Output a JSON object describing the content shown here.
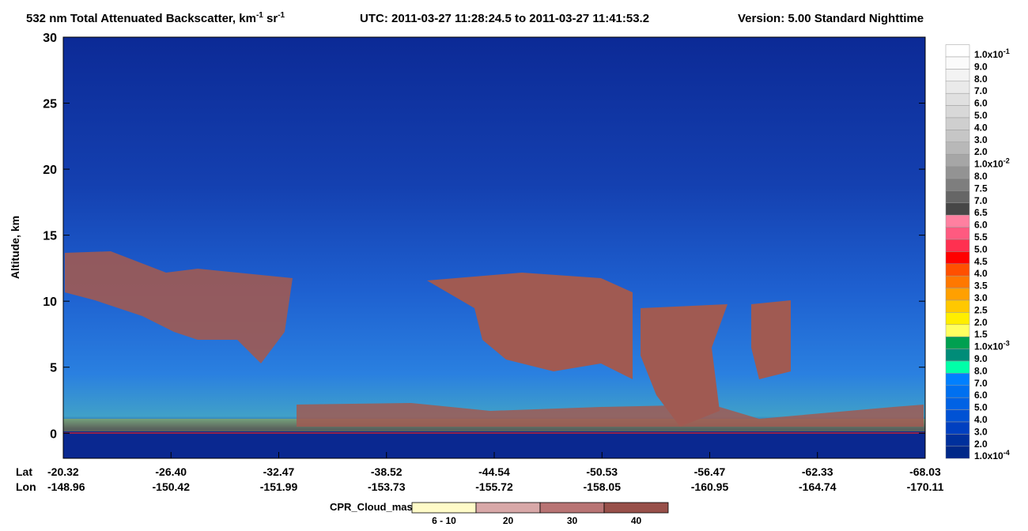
{
  "chart_data": {
    "type": "curtain",
    "title_segments": [
      "532 nm Total Attenuated Backscatter, km",
      "-1",
      " sr",
      "-1",
      "UTC:  2011-03-27 11:28:24.5  to  2011-03-27 11:41:53.2",
      "Version: 5.00  Standard  Nighttime"
    ],
    "ylabel": "Altitude, km",
    "ylim": [
      -1.9,
      30
    ],
    "yticks": [
      0,
      5,
      10,
      15,
      20,
      25,
      30
    ],
    "x_row_labels": [
      "Lat",
      "Lon"
    ],
    "lat_labels": [
      "-20.32",
      "-26.40",
      "-32.47",
      "-38.52",
      "-44.54",
      "-50.53",
      "-56.47",
      "-62.33",
      "-68.03"
    ],
    "lon_labels": [
      "-148.96",
      "-150.42",
      "-151.99",
      "-153.73",
      "-155.72",
      "-158.05",
      "-160.95",
      "-164.74",
      "-170.11"
    ],
    "colorbar": [
      {
        "label": "1.0x10",
        "exp": "-1",
        "color": "#ffffff"
      },
      {
        "label": "9.0",
        "color": "#fbfbfb"
      },
      {
        "label": "8.0",
        "color": "#f3f3f3"
      },
      {
        "label": "7.0",
        "color": "#eaeaea"
      },
      {
        "label": "6.0",
        "color": "#e0e0e0"
      },
      {
        "label": "5.0",
        "color": "#d8d8d8"
      },
      {
        "label": "4.0",
        "color": "#cfcfcf"
      },
      {
        "label": "3.0",
        "color": "#c6c6c6"
      },
      {
        "label": "2.0",
        "color": "#b8b8b8"
      },
      {
        "label": "1.0x10",
        "exp": "-2",
        "color": "#a6a6a6"
      },
      {
        "label": "8.0",
        "color": "#939393"
      },
      {
        "label": "7.5",
        "color": "#7e7e7e"
      },
      {
        "label": "7.0",
        "color": "#666666"
      },
      {
        "label": "6.5",
        "color": "#474747"
      },
      {
        "label": "6.0",
        "color": "#ff80a0"
      },
      {
        "label": "5.5",
        "color": "#ff5a80"
      },
      {
        "label": "5.0",
        "color": "#ff3050"
      },
      {
        "label": "4.5",
        "color": "#ff0000"
      },
      {
        "label": "4.0",
        "color": "#ff5000"
      },
      {
        "label": "3.5",
        "color": "#ff7800"
      },
      {
        "label": "3.0",
        "color": "#ffa000"
      },
      {
        "label": "2.5",
        "color": "#ffc800"
      },
      {
        "label": "2.0",
        "color": "#ffee00"
      },
      {
        "label": "1.5",
        "color": "#ffff60"
      },
      {
        "label": "1.0x10",
        "exp": "-3",
        "color": "#00a050"
      },
      {
        "label": "9.0",
        "color": "#008c78"
      },
      {
        "label": "8.0",
        "color": "#00ffa8"
      },
      {
        "label": "7.0",
        "color": "#0080ff"
      },
      {
        "label": "6.0",
        "color": "#0070f0"
      },
      {
        "label": "5.0",
        "color": "#0062e4"
      },
      {
        "label": "4.0",
        "color": "#0052d4"
      },
      {
        "label": "3.0",
        "color": "#0040c0"
      },
      {
        "label": "2.0",
        "color": "#00309c"
      },
      {
        "label": "1.0x10",
        "exp": "-4",
        "color": "#002888"
      }
    ],
    "mask_title": "CPR_Cloud_mask",
    "mask_legend": [
      {
        "label": "6 - 10",
        "color": "#fffbc8"
      },
      {
        "label": "20",
        "color": "#d8a8a8"
      },
      {
        "label": "30",
        "color": "#b87474"
      },
      {
        "label": "40",
        "color": "#98504a"
      }
    ]
  }
}
